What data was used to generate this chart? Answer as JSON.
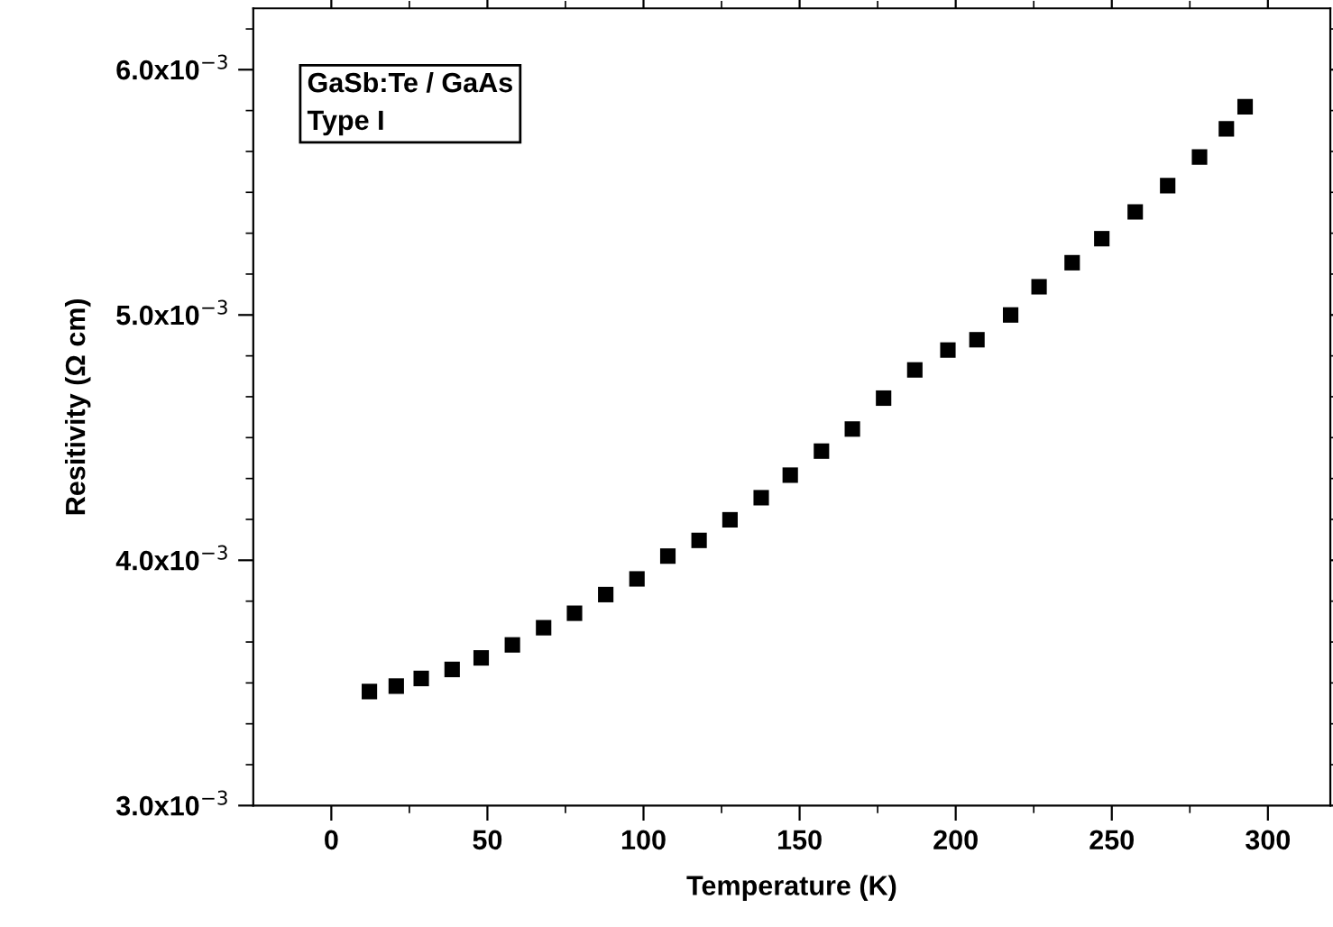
{
  "chart_data": {
    "type": "scatter",
    "xlabel": "Temperature (K)",
    "ylabel": "Resitivity (Ω cm)",
    "annotations": [
      "GaSb:Te / GaAs",
      "Type I"
    ],
    "x": [
      12.2,
      20.8,
      28.8,
      38.7,
      48.0,
      58.0,
      68.0,
      77.9,
      87.9,
      97.9,
      107.8,
      117.8,
      127.7,
      137.7,
      147.0,
      157.0,
      166.9,
      176.9,
      186.9,
      197.5,
      206.8,
      217.6,
      226.7,
      237.3,
      246.8,
      257.5,
      267.9,
      278.1,
      286.7,
      292.7
    ],
    "series": [
      {
        "color": "#000000",
        "values": [
          0.003465,
          0.003487,
          0.003518,
          0.003555,
          0.003602,
          0.003655,
          0.003725,
          0.003784,
          0.00386,
          0.003924,
          0.004017,
          0.004081,
          0.004165,
          0.004255,
          0.004347,
          0.004445,
          0.004535,
          0.004661,
          0.004776,
          0.004857,
          0.004899,
          0.005,
          0.005115,
          0.005213,
          0.005311,
          0.00542,
          0.005527,
          0.005644,
          0.005759,
          0.005849
        ]
      }
    ],
    "marker": "square",
    "xlim": [
      -25,
      320
    ],
    "ylim": [
      0.003,
      0.00625
    ],
    "xticks": [
      0,
      50,
      100,
      150,
      200,
      250,
      300,
      {
        "value": 25,
        "label": null
      },
      {
        "value": 75,
        "label": null
      },
      {
        "value": 125,
        "label": null
      },
      {
        "value": 175,
        "label": null
      },
      {
        "value": 225,
        "label": null
      },
      {
        "value": 275,
        "label": null
      }
    ],
    "yticks": [
      {
        "value": 0.003,
        "label": "3.0x10$^{−3}$"
      },
      {
        "value": 0.004,
        "label": "4.0x10$^{−3}$"
      },
      {
        "value": 0.005,
        "label": "5.0x10$^{−3}$"
      },
      {
        "value": 0.006,
        "label": "6.0x10$^{−3}$"
      },
      {
        "value": 0.0031667,
        "label": null
      },
      {
        "value": 0.0033333,
        "label": null
      },
      {
        "value": 0.0035,
        "label": null
      },
      {
        "value": 0.0036667,
        "label": null
      },
      {
        "value": 0.0038333,
        "label": null
      },
      {
        "value": 0.0041667,
        "label": null
      },
      {
        "value": 0.0043333,
        "label": null
      },
      {
        "value": 0.0045,
        "label": null
      },
      {
        "value": 0.0046667,
        "label": null
      },
      {
        "value": 0.0048333,
        "label": null
      },
      {
        "value": 0.0051667,
        "label": null
      },
      {
        "value": 0.0053333,
        "label": null
      },
      {
        "value": 0.0055,
        "label": null
      },
      {
        "value": 0.0056667,
        "label": null
      },
      {
        "value": 0.0058333,
        "label": null
      },
      {
        "value": 0.006166,
        "label": null
      }
    ],
    "grid": false,
    "legend": false
  }
}
